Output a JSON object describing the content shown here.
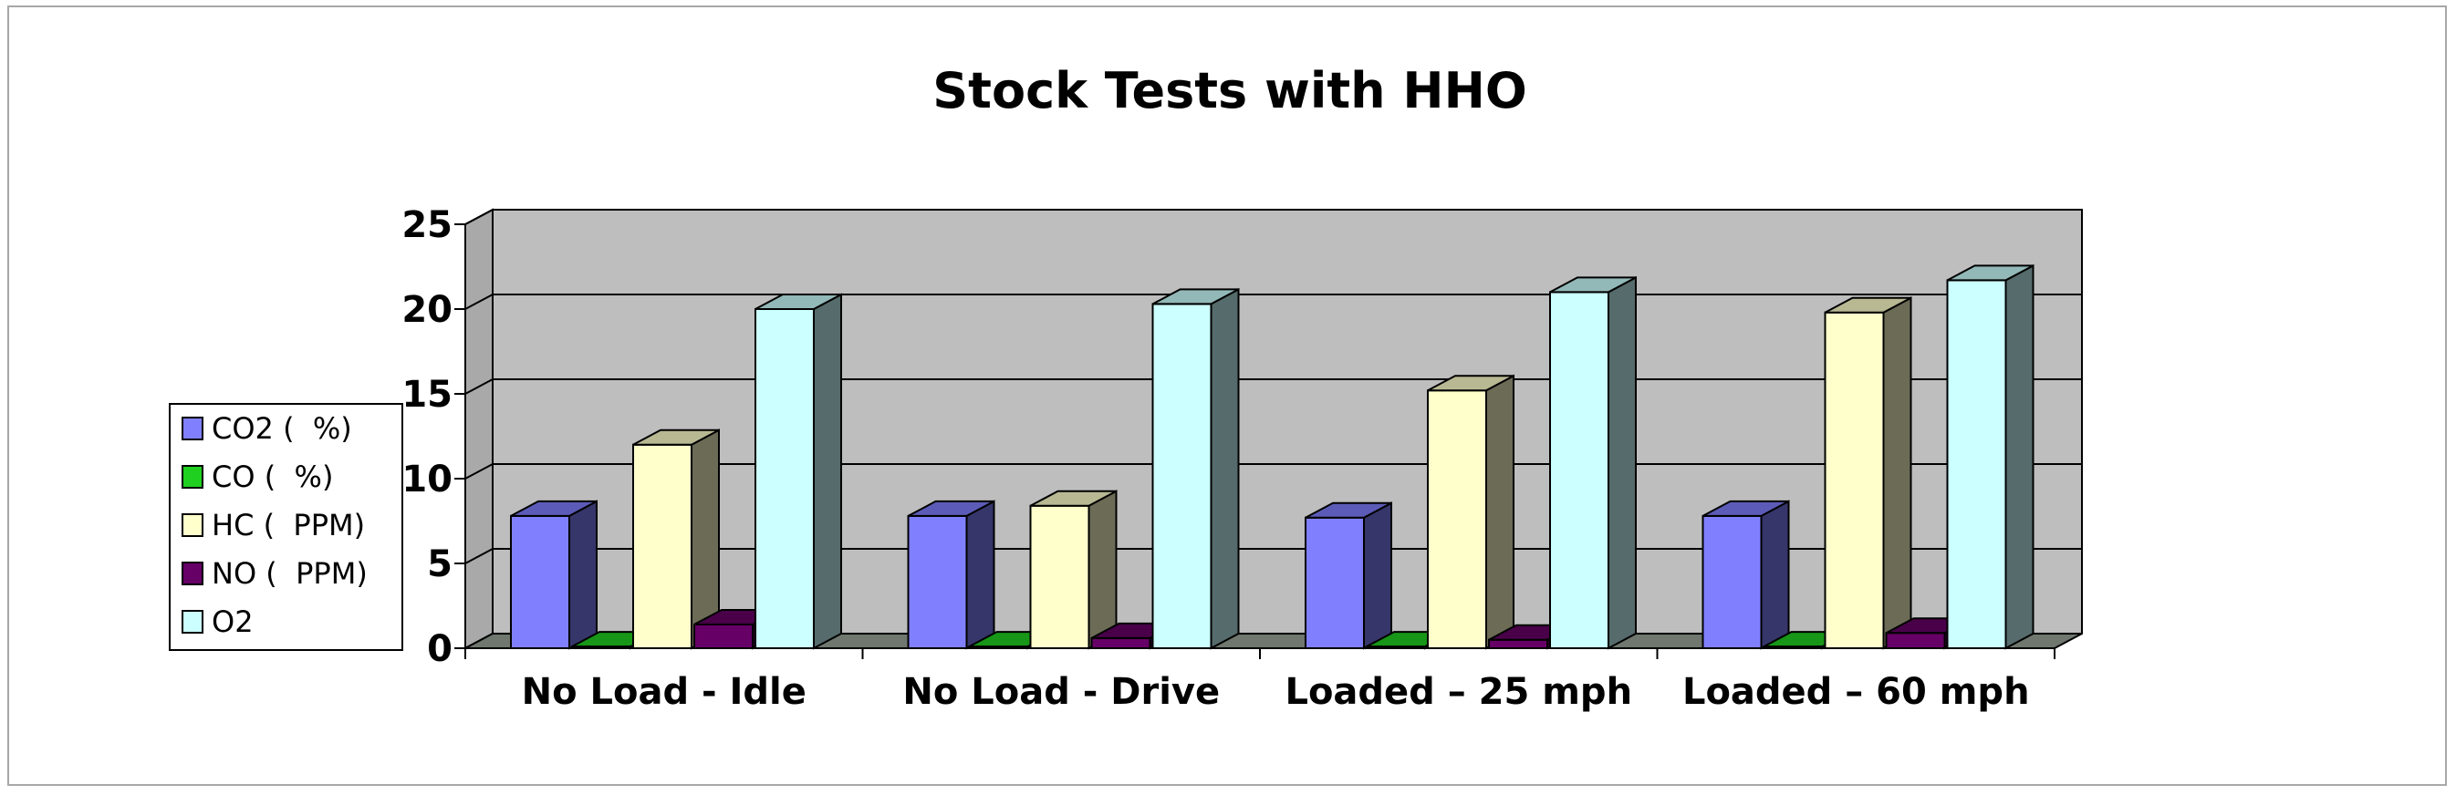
{
  "chart_data": {
    "type": "bar",
    "title": "Stock Tests with HHO",
    "categories": [
      "No Load - Idle",
      "No Load - Drive",
      "Loaded – 25 mph",
      "Loaded – 60 mph"
    ],
    "series": [
      {
        "name": "CO2 (  %)",
        "values": [
          7.8,
          7.8,
          7.7,
          7.8
        ],
        "color": "#8080ff"
      },
      {
        "name": "CO (  %)",
        "values": [
          0.1,
          0.1,
          0.1,
          0.1
        ],
        "color": "#20d020"
      },
      {
        "name": "HC (  PPM)",
        "values": [
          12.0,
          8.4,
          15.2,
          19.8
        ],
        "color": "#ffffcc"
      },
      {
        "name": "NO (  PPM)",
        "values": [
          1.4,
          0.6,
          0.5,
          0.9
        ],
        "color": "#660066"
      },
      {
        "name": "O2",
        "values": [
          20.0,
          20.3,
          21.0,
          21.7
        ],
        "color": "#ccffff"
      }
    ],
    "y_ticks": [
      "0",
      "5",
      "10",
      "15",
      "20",
      "25"
    ],
    "ylim": [
      0,
      25
    ],
    "grid": true,
    "legend_position": "left"
  }
}
